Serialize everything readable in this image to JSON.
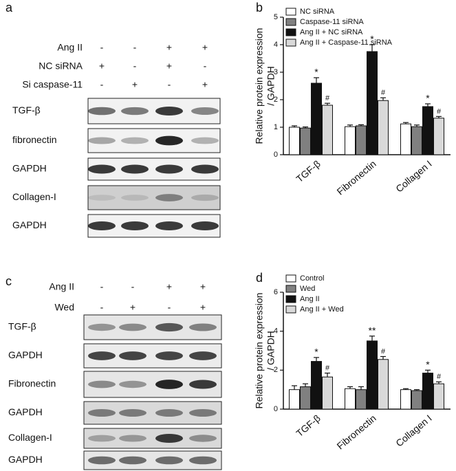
{
  "panels": [
    {
      "label": "a",
      "conditions": [
        {
          "name": "Ang II",
          "signs": [
            "-",
            "-",
            "+",
            "+"
          ]
        },
        {
          "name": "NC siRNA",
          "signs": [
            "+",
            "-",
            "+",
            "-"
          ]
        },
        {
          "name": "Si caspase-11",
          "signs": [
            "-",
            "+",
            "-",
            "+"
          ]
        }
      ],
      "blots": [
        "TGF-β",
        "fibronectin",
        "GAPDH",
        "Collagen-I",
        "GAPDH"
      ]
    },
    {
      "label": "c",
      "conditions": [
        {
          "name": "Ang II",
          "signs": [
            "-",
            "-",
            "+",
            "+"
          ]
        },
        {
          "name": "Wed",
          "signs": [
            "-",
            "+",
            "-",
            "+"
          ]
        }
      ],
      "blots": [
        "TGF-β",
        "GAPDH",
        "Fibronectin",
        "GAPDH",
        "Collagen-I",
        "GAPDH"
      ]
    }
  ],
  "chart_data": [
    {
      "type": "bar",
      "panel": "b",
      "y_label": [
        "Relative protein expression",
        "/ GAPDH"
      ],
      "categories": [
        "TGF-β",
        "Fibronectin",
        "Collagen I"
      ],
      "ylim": [
        0,
        5
      ],
      "yticks": [
        0,
        1,
        2,
        3,
        4,
        5
      ],
      "series": [
        {
          "name": "NC siRNA",
          "color": "#ffffff",
          "values": [
            1.0,
            1.02,
            1.12
          ],
          "errors": [
            0.05,
            0.06,
            0.05
          ]
        },
        {
          "name": "Caspase-11 siRNA",
          "color": "#808080",
          "values": [
            0.97,
            1.05,
            1.02
          ],
          "errors": [
            0.04,
            0.04,
            0.06
          ]
        },
        {
          "name": "Ang II + NC siRNA",
          "color": "#111111",
          "values": [
            2.6,
            3.75,
            1.75
          ],
          "errors": [
            0.2,
            0.25,
            0.1
          ],
          "annotations": [
            "*",
            "*",
            "*"
          ]
        },
        {
          "name": "Ang II + Caspase-11 siRNA",
          "color": "#d9d9d9",
          "values": [
            1.8,
            1.97,
            1.33
          ],
          "errors": [
            0.07,
            0.1,
            0.06
          ],
          "annotations": [
            "#",
            "#",
            "#"
          ]
        }
      ]
    },
    {
      "type": "bar",
      "panel": "d",
      "y_label": [
        "Relative protein expression",
        "/ GAPDH"
      ],
      "categories": [
        "TGF-β",
        "Fibronectin",
        "Collagen I"
      ],
      "ylim": [
        0,
        6
      ],
      "yticks": [
        0,
        2,
        4,
        6
      ],
      "series": [
        {
          "name": "Control",
          "color": "#ffffff",
          "values": [
            1.0,
            1.05,
            1.0
          ],
          "errors": [
            0.2,
            0.1,
            0.05
          ]
        },
        {
          "name": "Wed",
          "color": "#808080",
          "values": [
            1.15,
            1.0,
            0.95
          ],
          "errors": [
            0.15,
            0.15,
            0.05
          ]
        },
        {
          "name": "Ang II",
          "color": "#111111",
          "values": [
            2.45,
            3.5,
            1.85
          ],
          "errors": [
            0.2,
            0.25,
            0.15
          ],
          "annotations": [
            "*",
            "**",
            "*"
          ]
        },
        {
          "name": "Ang II + Wed",
          "color": "#d9d9d9",
          "values": [
            1.65,
            2.55,
            1.3
          ],
          "errors": [
            0.2,
            0.15,
            0.1
          ],
          "annotations": [
            "#",
            "#",
            "#"
          ]
        }
      ]
    }
  ]
}
